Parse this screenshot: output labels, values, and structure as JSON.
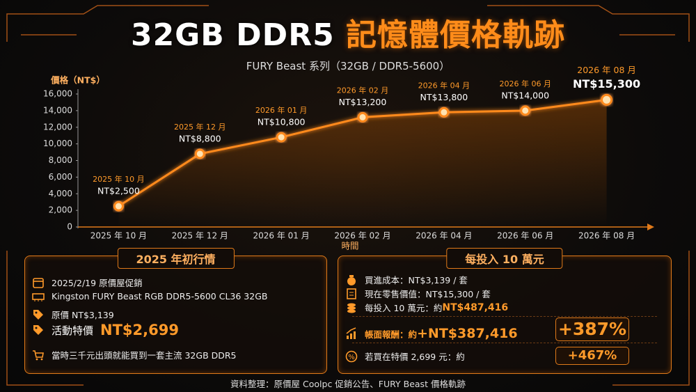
{
  "title_parts": [
    "32GB DDR5",
    "記憶體價格軌跡"
  ],
  "subtitle": "FURY Beast 系列（32GB / DDR5-5600）",
  "chart_data": {
    "type": "line",
    "y_label": "價格（NT$）",
    "x_label": "時間",
    "categories": [
      "2025 年 10 月",
      "2025 年 12 月",
      "2026 年 01 月",
      "2026 年 02 月",
      "2026 年 04 月",
      "2026 年 06 月",
      "2026 年 08 月"
    ],
    "values": [
      2500,
      8800,
      10800,
      13200,
      13800,
      14000,
      15300
    ],
    "value_labels": [
      "NT$2,500",
      "NT$8,800",
      "NT$10,800",
      "NT$13,200",
      "NT$13,800",
      "NT$14,000",
      "NT$15,300"
    ],
    "color": "#ff8a1e",
    "ylim": [
      0,
      16000
    ],
    "yticks": [
      0,
      {
        "value": 2000,
        "label": "2,000"
      },
      {
        "value": 4000,
        "label": "4,000"
      },
      {
        "value": 6000,
        "label": "6,000"
      },
      {
        "value": 8000,
        "label": "8,000"
      },
      {
        "value": 10000,
        "label": "10,000"
      },
      {
        "value": 12000,
        "label": "12,000"
      },
      {
        "value": 14000,
        "label": "14,000"
      },
      {
        "value": 16000,
        "label": "16,000"
      }
    ]
  },
  "left_panel": {
    "title": "2025 年初行情",
    "items": [
      "2025/2/19 原價屋促銷",
      "Kingston FURY Beast RGB DDR5-5600 CL36 32GB",
      "原價 NT$3,139"
    ],
    "sale_label": "活動特價",
    "sale_price": "NT$2,699",
    "note": "當時三千元出頭就能買到一套主流 32GB DDR5"
  },
  "right_panel": {
    "title": "每投入 10 萬元",
    "items": [
      "買進成本：NT$3,139 / 套",
      "現在零售價值：NT$15,300 / 套"
    ],
    "invest_label": "每投入 10 萬元：約",
    "invest_value": "NT$487,416",
    "return_label": "帳面報酬：約",
    "return_value": "+NT$387,416",
    "return_pct": "+387%",
    "sale_label": "若買在特價 2,699 元：約",
    "sale_pct": "+467%"
  },
  "footer": "資料整理：原價屋 Coolpc 促銷公告、FURY Beast 價格軌跡"
}
